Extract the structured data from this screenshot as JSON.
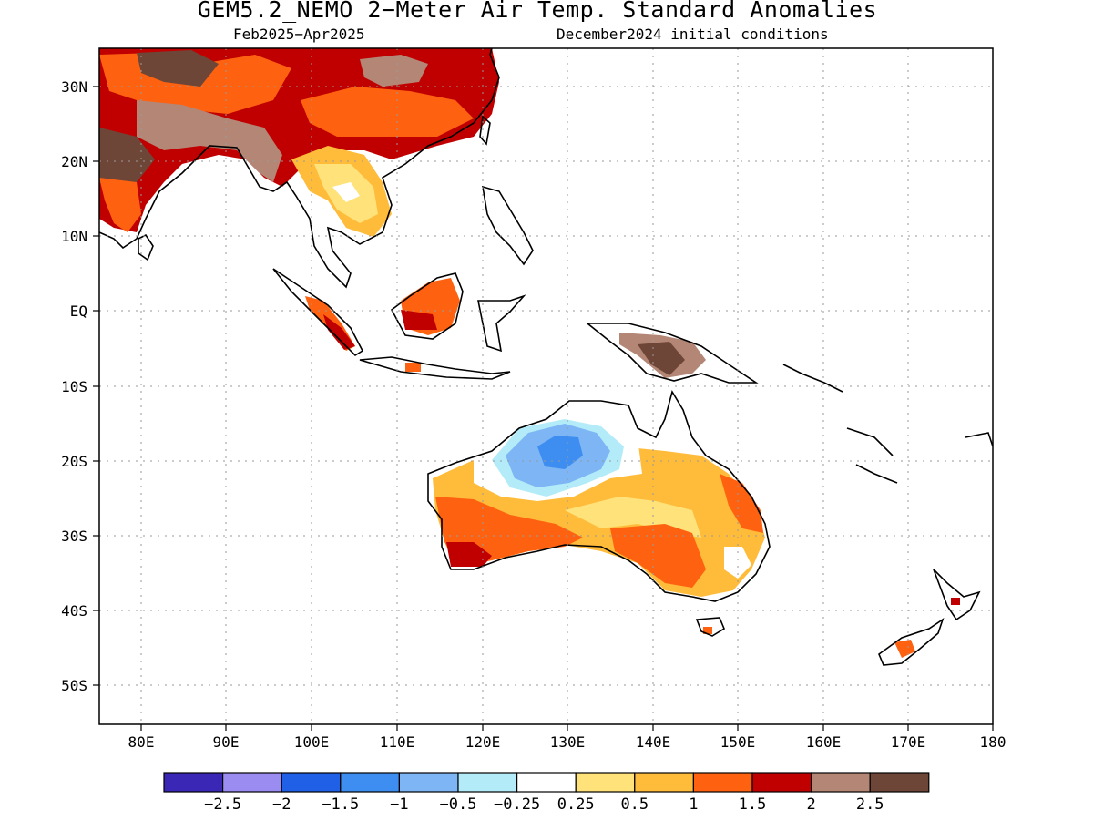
{
  "title": "GEM5.2_NEMO 2−Meter Air Temp. Standard Anomalies",
  "period": "Feb2025−Apr2025",
  "initial_conditions": "December2024 initial conditions",
  "lon_labels": [
    "80E",
    "90E",
    "100E",
    "110E",
    "120E",
    "130E",
    "140E",
    "150E",
    "160E",
    "170E",
    "180"
  ],
  "lat_labels": [
    "30N",
    "20N",
    "10N",
    "EQ",
    "10S",
    "20S",
    "30S",
    "40S",
    "50S"
  ],
  "legend": {
    "colors": [
      "#3a27b5",
      "#9b8cf2",
      "#1f60e6",
      "#3d8ef0",
      "#7db5f5",
      "#b3ecf8",
      "#ffffff",
      "#ffe27a",
      "#ffbb3a",
      "#fe6210",
      "#c00000",
      "#b38676",
      "#6e4637"
    ],
    "labels": [
      "−2.5",
      "−2",
      "−1.5",
      "−1",
      "−0.5",
      "−0.25",
      "0.25",
      "0.5",
      "1",
      "1.5",
      "2",
      "2.5"
    ]
  }
}
